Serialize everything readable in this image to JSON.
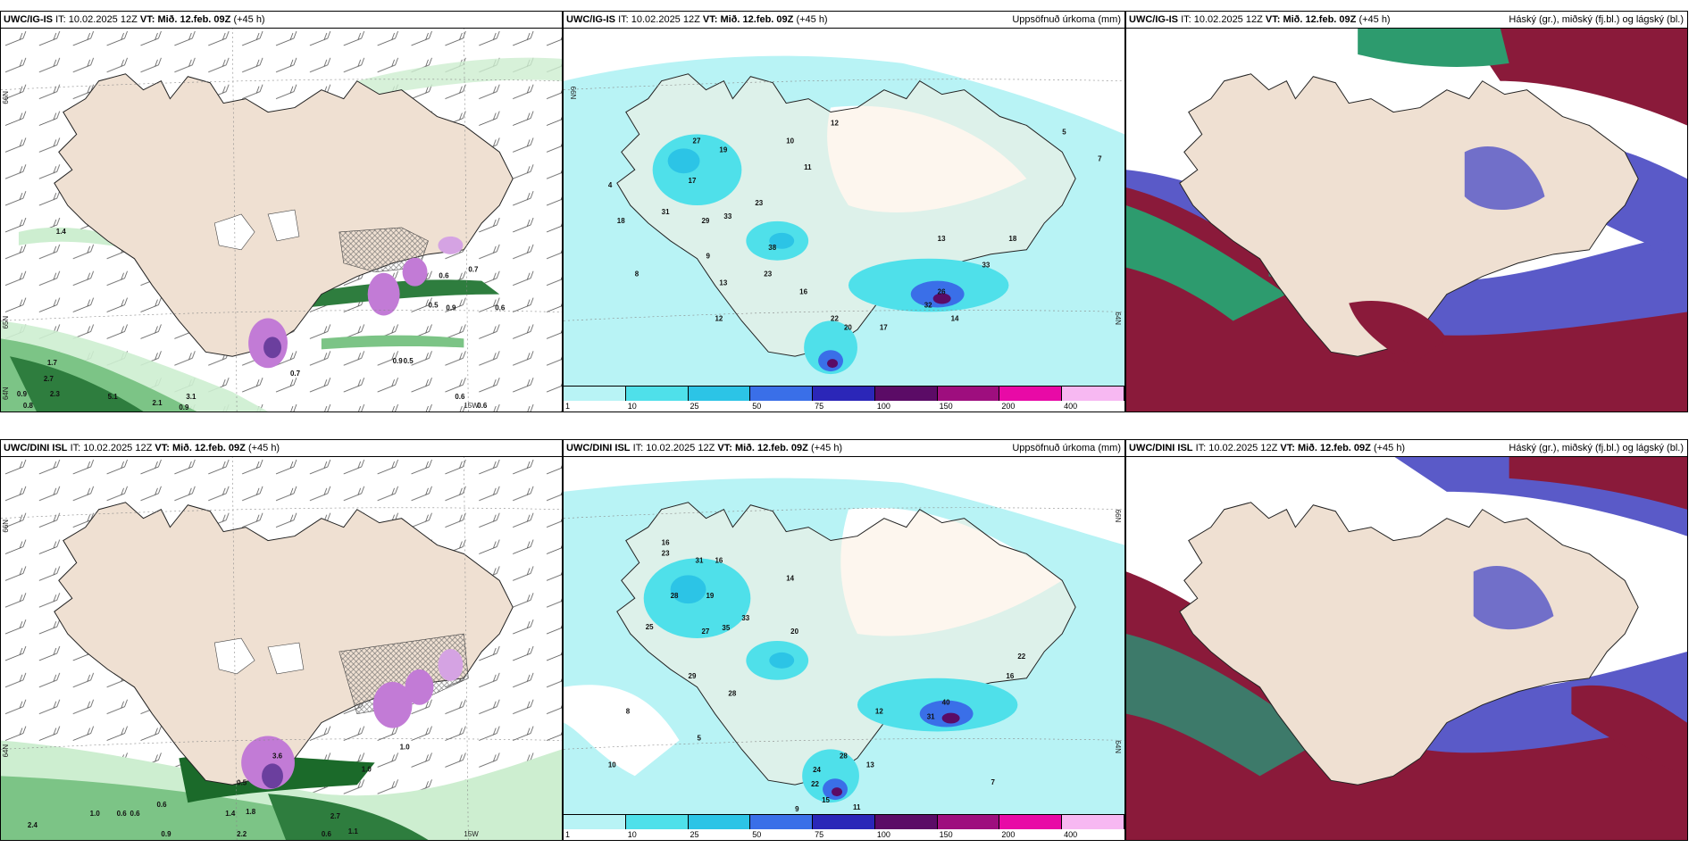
{
  "panels": [
    {
      "id": "top-left",
      "model": "UWC/IG-IS",
      "it_label": "IT:",
      "it_value": "10.02.2025 12Z",
      "vt_label": "VT:",
      "vt_value": "Mið. 12.feb. 09Z",
      "lead": "(+45 h)",
      "right_title": "",
      "coord_labels": [
        "66N",
        "65N",
        "64N",
        "15W"
      ],
      "values": [
        "1.4",
        "0.6",
        "0.7",
        "0.5",
        "0.9",
        "0.6",
        "1.7",
        "2.7",
        "0.9",
        "2.3",
        "0.8",
        "5.1",
        "2.1",
        "0.9",
        "3.1",
        "0.7",
        "0.9",
        "0.5",
        "0.6",
        "0.6"
      ]
    },
    {
      "id": "top-middle",
      "model": "UWC/IG-IS",
      "it_label": "IT:",
      "it_value": "10.02.2025 12Z",
      "vt_label": "VT:",
      "vt_value": "Mið. 12.feb. 09Z",
      "lead": "(+45 h)",
      "right_title": "Uppsöfnuð úrkoma (mm)",
      "coord_labels": [
        "66N",
        "64N"
      ],
      "values": [
        "27",
        "19",
        "17",
        "31",
        "29",
        "33",
        "23",
        "38",
        "18",
        "13",
        "23",
        "16",
        "12",
        "22",
        "20",
        "17",
        "32",
        "26",
        "14",
        "33",
        "18",
        "13",
        "7",
        "5",
        "12",
        "10",
        "8",
        "9",
        "11",
        "4"
      ],
      "colorbar": [
        "1",
        "10",
        "25",
        "50",
        "75",
        "100",
        "150",
        "200",
        "400"
      ]
    },
    {
      "id": "top-right",
      "model": "UWC/IG-IS",
      "it_label": "IT:",
      "it_value": "10.02.2025 12Z",
      "vt_label": "VT:",
      "vt_value": "Mið. 12.feb. 09Z",
      "lead": "(+45 h)",
      "right_title": "Háský (gr.), miðský (fj.bl.) og lágský (bl.)"
    },
    {
      "id": "bottom-left",
      "model": "UWC/DINI ISL",
      "it_label": "IT:",
      "it_value": "10.02.2025 12Z",
      "vt_label": "VT:",
      "vt_value": "Mið. 12.feb. 09Z",
      "lead": "(+45 h)",
      "right_title": "",
      "coord_labels": [
        "66N",
        "64N",
        "15W"
      ],
      "values": [
        "3.6",
        "1.0",
        "1.0",
        "0.6",
        "2.4",
        "1.0",
        "0.6",
        "0.6",
        "1.4",
        "1.8",
        "2.7",
        "0.9",
        "0.6",
        "1.1",
        "2.2",
        "0.5"
      ]
    },
    {
      "id": "bottom-middle",
      "model": "UWC/DINI ISL",
      "it_label": "IT:",
      "it_value": "10.02.2025 12Z",
      "vt_label": "VT:",
      "vt_value": "Mið. 12.feb. 09Z",
      "lead": "(+45 h)",
      "right_title": "Uppsöfnuð úrkoma (mm)",
      "coord_labels": [
        "66N",
        "64N"
      ],
      "values": [
        "16",
        "23",
        "31",
        "16",
        "19",
        "28",
        "25",
        "27",
        "35",
        "33",
        "29",
        "28",
        "20",
        "40",
        "31",
        "24",
        "28",
        "22",
        "15",
        "13",
        "16",
        "22",
        "11",
        "8",
        "10",
        "5",
        "9",
        "12",
        "14",
        "7"
      ],
      "colorbar": [
        "1",
        "10",
        "25",
        "50",
        "75",
        "100",
        "150",
        "200",
        "400"
      ]
    },
    {
      "id": "bottom-right",
      "model": "UWC/DINI ISL",
      "it_label": "IT:",
      "it_value": "10.02.2025 12Z",
      "vt_label": "VT:",
      "vt_value": "Mið. 12.feb. 09Z",
      "lead": "(+45 h)",
      "right_title": "Háský (gr.), miðský (fj.bl.) og lágský (bl.)"
    }
  ],
  "colors": {
    "land": "#efe0d2",
    "precip_light": "#b8f3f5",
    "precip_10": "#4fe0ea",
    "precip_25": "#2cc4e6",
    "precip_50": "#3a6fe8",
    "precip_75": "#2b26b8",
    "precip_100": "#5b0b66",
    "precip_150": "#9e0e7e",
    "precip_200": "#e80aa6",
    "precip_400": "#f7b8f2",
    "snow_light": "#cdeed0",
    "snow_dark": "#1b6a2a",
    "cloud_high": "#2d9b6e",
    "cloud_mid": "#5a5ac8",
    "cloud_low": "#8a1a3a"
  }
}
